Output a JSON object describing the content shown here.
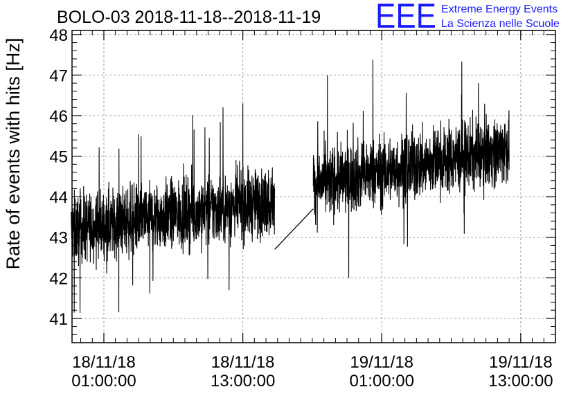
{
  "chart_data": {
    "type": "line",
    "title": "BOLO-03 2018-11-18--2018-11-19",
    "xlabel": "",
    "ylabel": "Rate of events with hits [Hz]",
    "ylim": [
      40.4,
      48.1
    ],
    "yticks": [
      41,
      42,
      43,
      44,
      45,
      46,
      47,
      48
    ],
    "xticks": [
      {
        "value": "2018-11-18 01:00:00",
        "label_line1": "18/11/18",
        "label_line2": "01:00:00"
      },
      {
        "value": "2018-11-18 13:00:00",
        "label_line1": "18/11/18",
        "label_line2": "13:00:00"
      },
      {
        "value": "2018-11-19 01:00:00",
        "label_line1": "19/11/18",
        "label_line2": "01:00:00"
      },
      {
        "value": "2018-11-19 13:00:00",
        "label_line1": "19/11/18",
        "label_line2": "13:00:00"
      }
    ],
    "xlim": [
      "2018-11-17 22:15:00",
      "2018-11-19 16:00:00"
    ],
    "grid": true,
    "series": [
      {
        "color": "#000000",
        "segments": [
          {
            "start": "2018-11-17 22:10:00",
            "end": "2018-11-18 15:45:00",
            "mean_start": 43.2,
            "mean_end": 43.9,
            "spread": 0.9,
            "min": 41.0,
            "max": 46.3
          },
          {
            "start": "2018-11-18 19:05:00",
            "end": "2018-11-19 12:00:00",
            "mean_start": 44.3,
            "mean_end": 45.2,
            "spread": 0.9,
            "min": 42.0,
            "max": 47.5
          }
        ],
        "gap_connector": {
          "from": {
            "x": "2018-11-18 15:45:00",
            "y": 42.7
          },
          "to": {
            "x": "2018-11-18 19:05:00",
            "y": 43.7
          }
        }
      }
    ]
  },
  "logo": {
    "mark": "EEE",
    "line1": "Extreme Energy Events",
    "line2": "La Scienza nelle Scuole",
    "color": "#1a1aff"
  }
}
